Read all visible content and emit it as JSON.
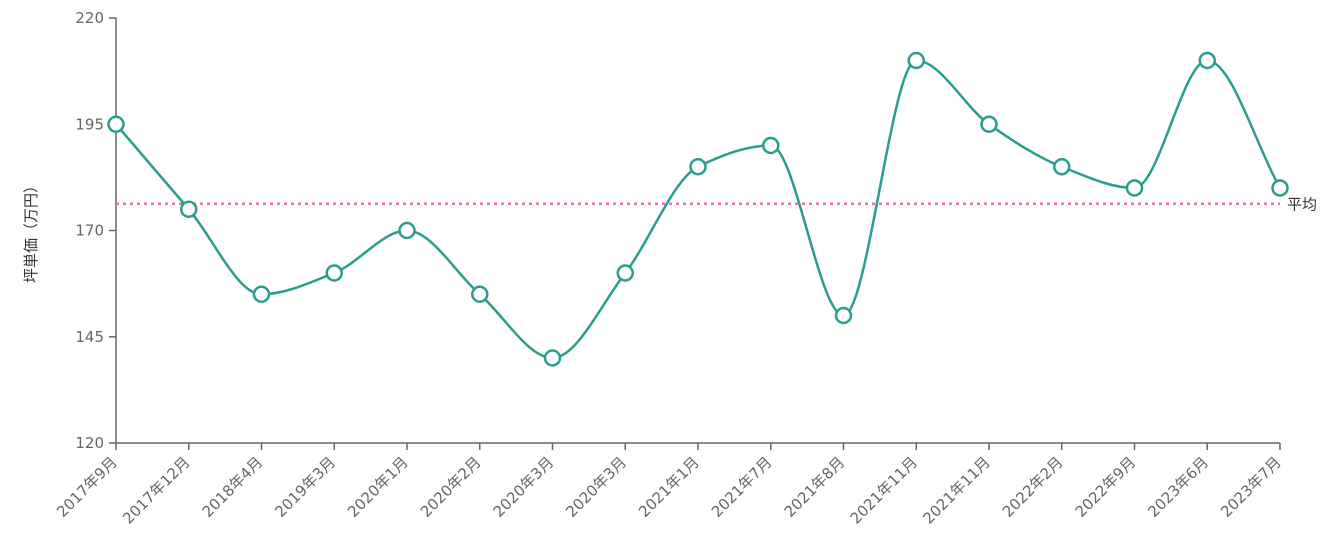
{
  "chart_data": {
    "type": "line",
    "ylabel": "坪単価（万円）",
    "ylim": [
      120,
      220
    ],
    "yticks": [
      120,
      145,
      170,
      195,
      220
    ],
    "categories": [
      "2017年9月",
      "2017年12月",
      "2018年4月",
      "2019年3月",
      "2020年1月",
      "2020年2月",
      "2020年3月",
      "2020年3月",
      "2021年1月",
      "2021年7月",
      "2021年8月",
      "2021年11月",
      "2021年11月",
      "2022年2月",
      "2022年9月",
      "2023年6月",
      "2023年7月"
    ],
    "series": [
      {
        "values": [
          195,
          175,
          155,
          160,
          170,
          155,
          140,
          160,
          185,
          190,
          150,
          210,
          195,
          185,
          180,
          210,
          180
        ]
      }
    ],
    "average": {
      "label": "平均",
      "value": 176.3
    },
    "colors": {
      "line": "#2a9d8f",
      "average": "#f06ca8",
      "axis": "#666666"
    },
    "grid": false,
    "curve": "smooth"
  }
}
